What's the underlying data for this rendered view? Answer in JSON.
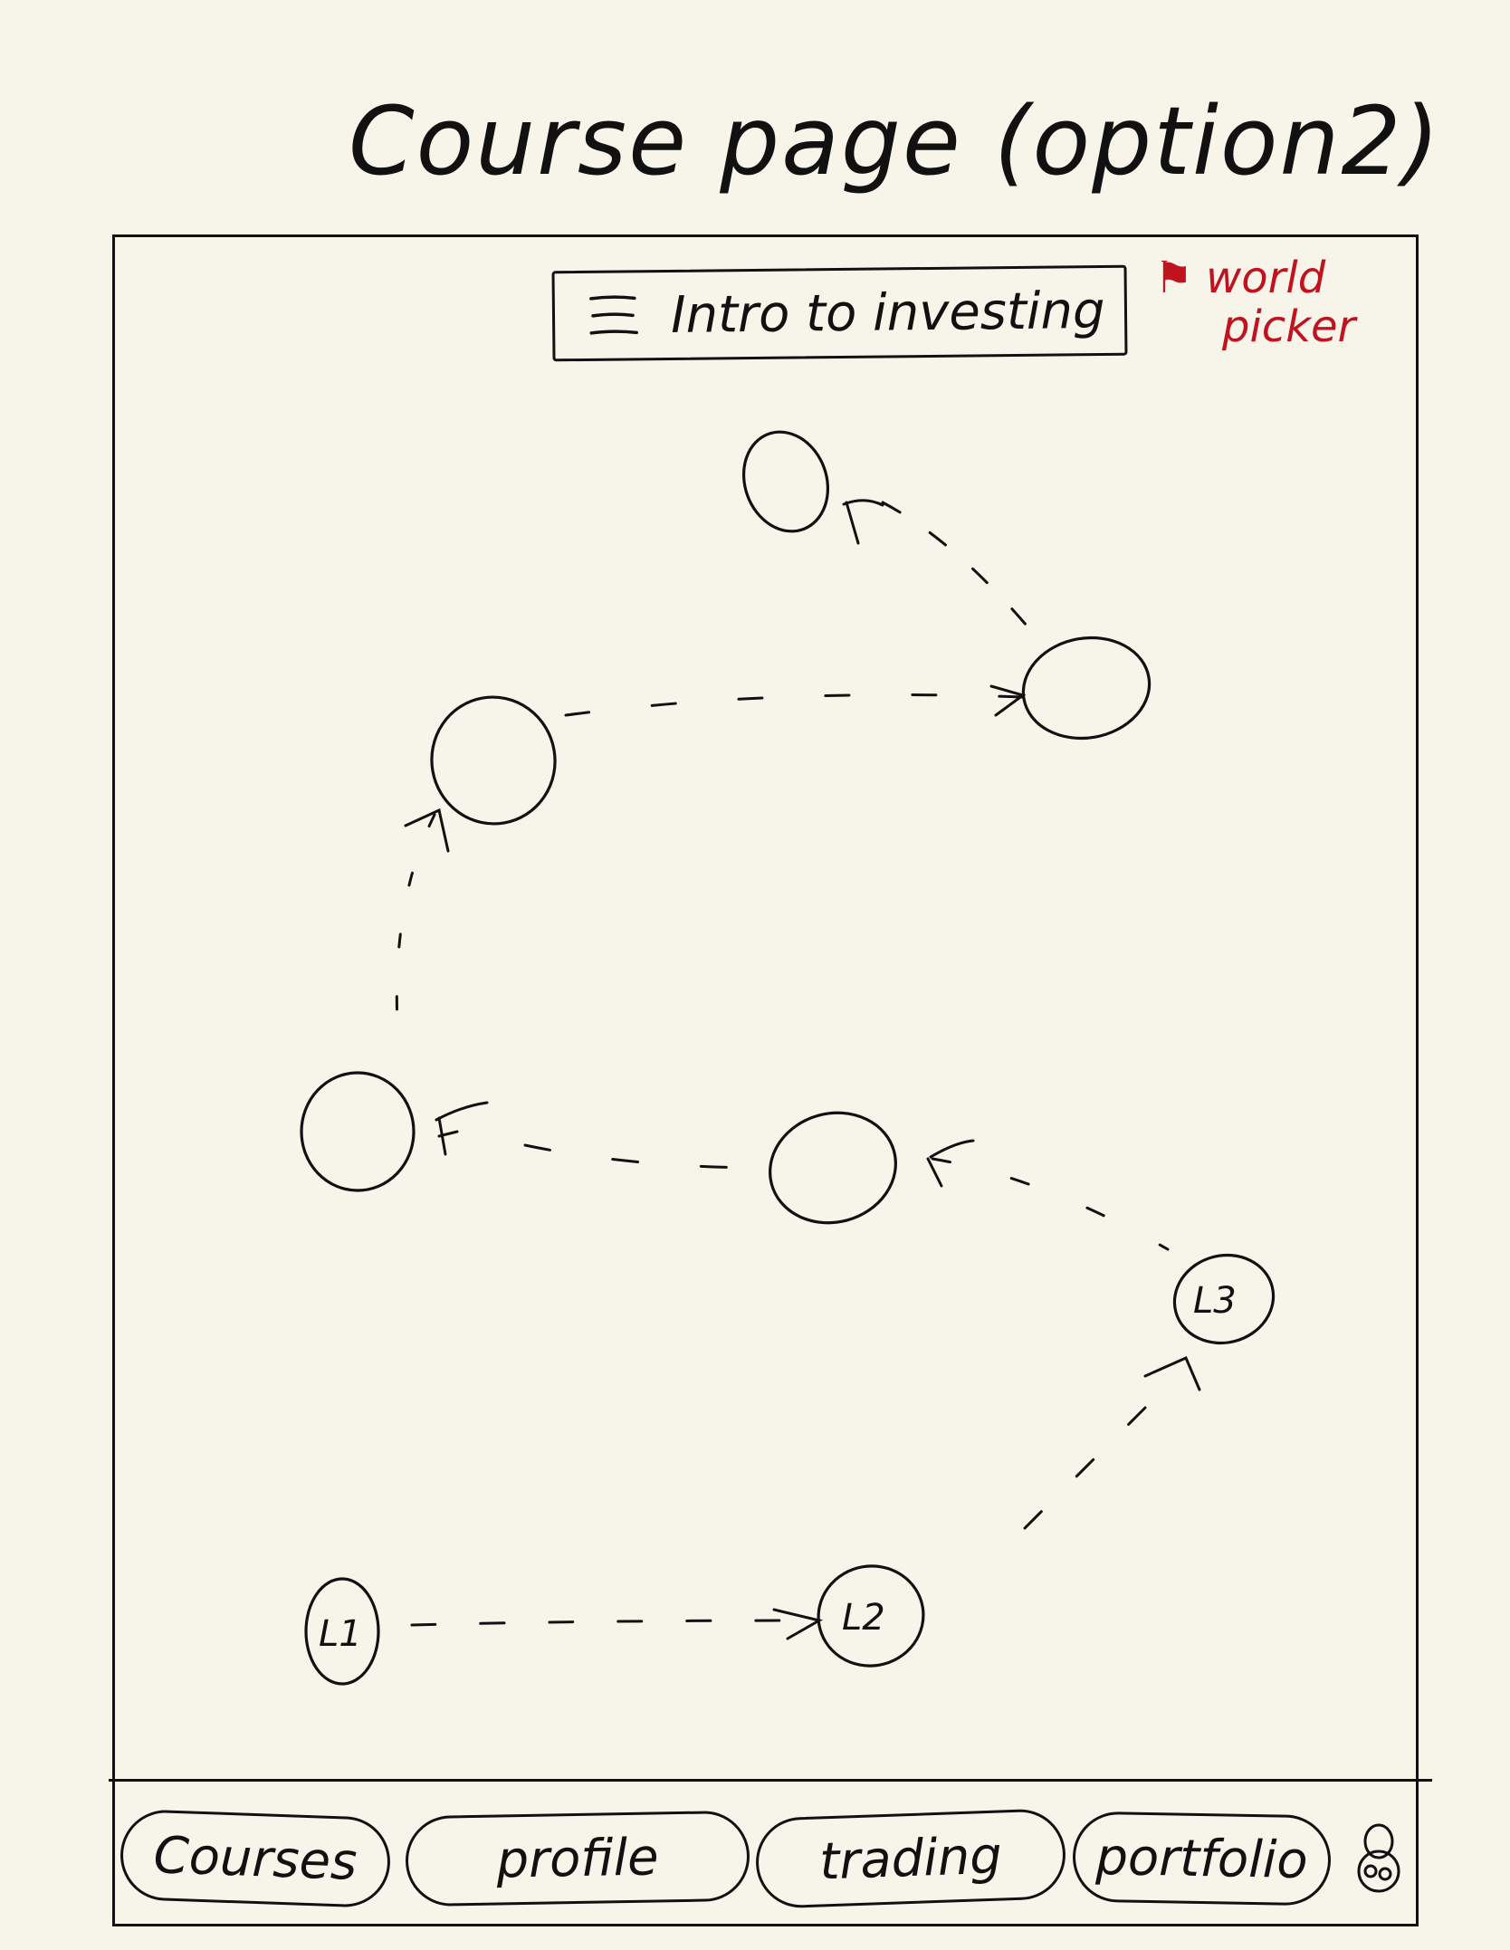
{
  "page": {
    "title": "Course page (option2)"
  },
  "header": {
    "menu_icon": "hamburger-menu-icon",
    "course_title": "Intro to investing"
  },
  "annotation": {
    "flag_icon": "flag-icon",
    "text_line1": "world",
    "text_line2": "picker",
    "color": "#c1121f"
  },
  "path": {
    "nodes": [
      {
        "id": "top",
        "label": "",
        "flag": true
      },
      {
        "id": "right-upper",
        "label": "",
        "flag": false
      },
      {
        "id": "left-upper",
        "label": "",
        "flag": false
      },
      {
        "id": "left-middle",
        "label": "",
        "flag": true
      },
      {
        "id": "center-middle",
        "label": "",
        "flag": true
      },
      {
        "id": "l3",
        "label": "L3",
        "flag": false
      },
      {
        "id": "l2",
        "label": "L2",
        "flag": false
      },
      {
        "id": "l1",
        "label": "L1",
        "flag": false
      }
    ]
  },
  "nav": {
    "courses": "Courses",
    "profile": "profile",
    "trading": "trading",
    "portfolio": "portfolio",
    "avatar_icon": "avatar-icon"
  }
}
